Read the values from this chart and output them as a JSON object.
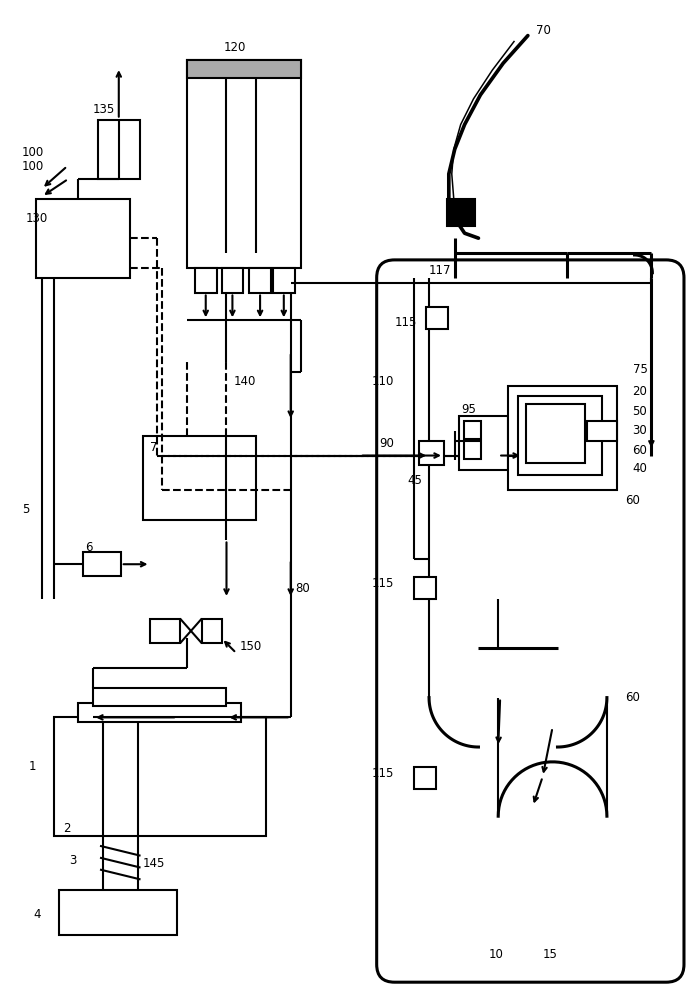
{
  "bg": "#ffffff",
  "lc": "#000000",
  "lw": 1.5,
  "tlw": 2.2,
  "fs": 8.5,
  "fig_w": 7.0,
  "fig_h": 10.0,
  "dpi": 100
}
